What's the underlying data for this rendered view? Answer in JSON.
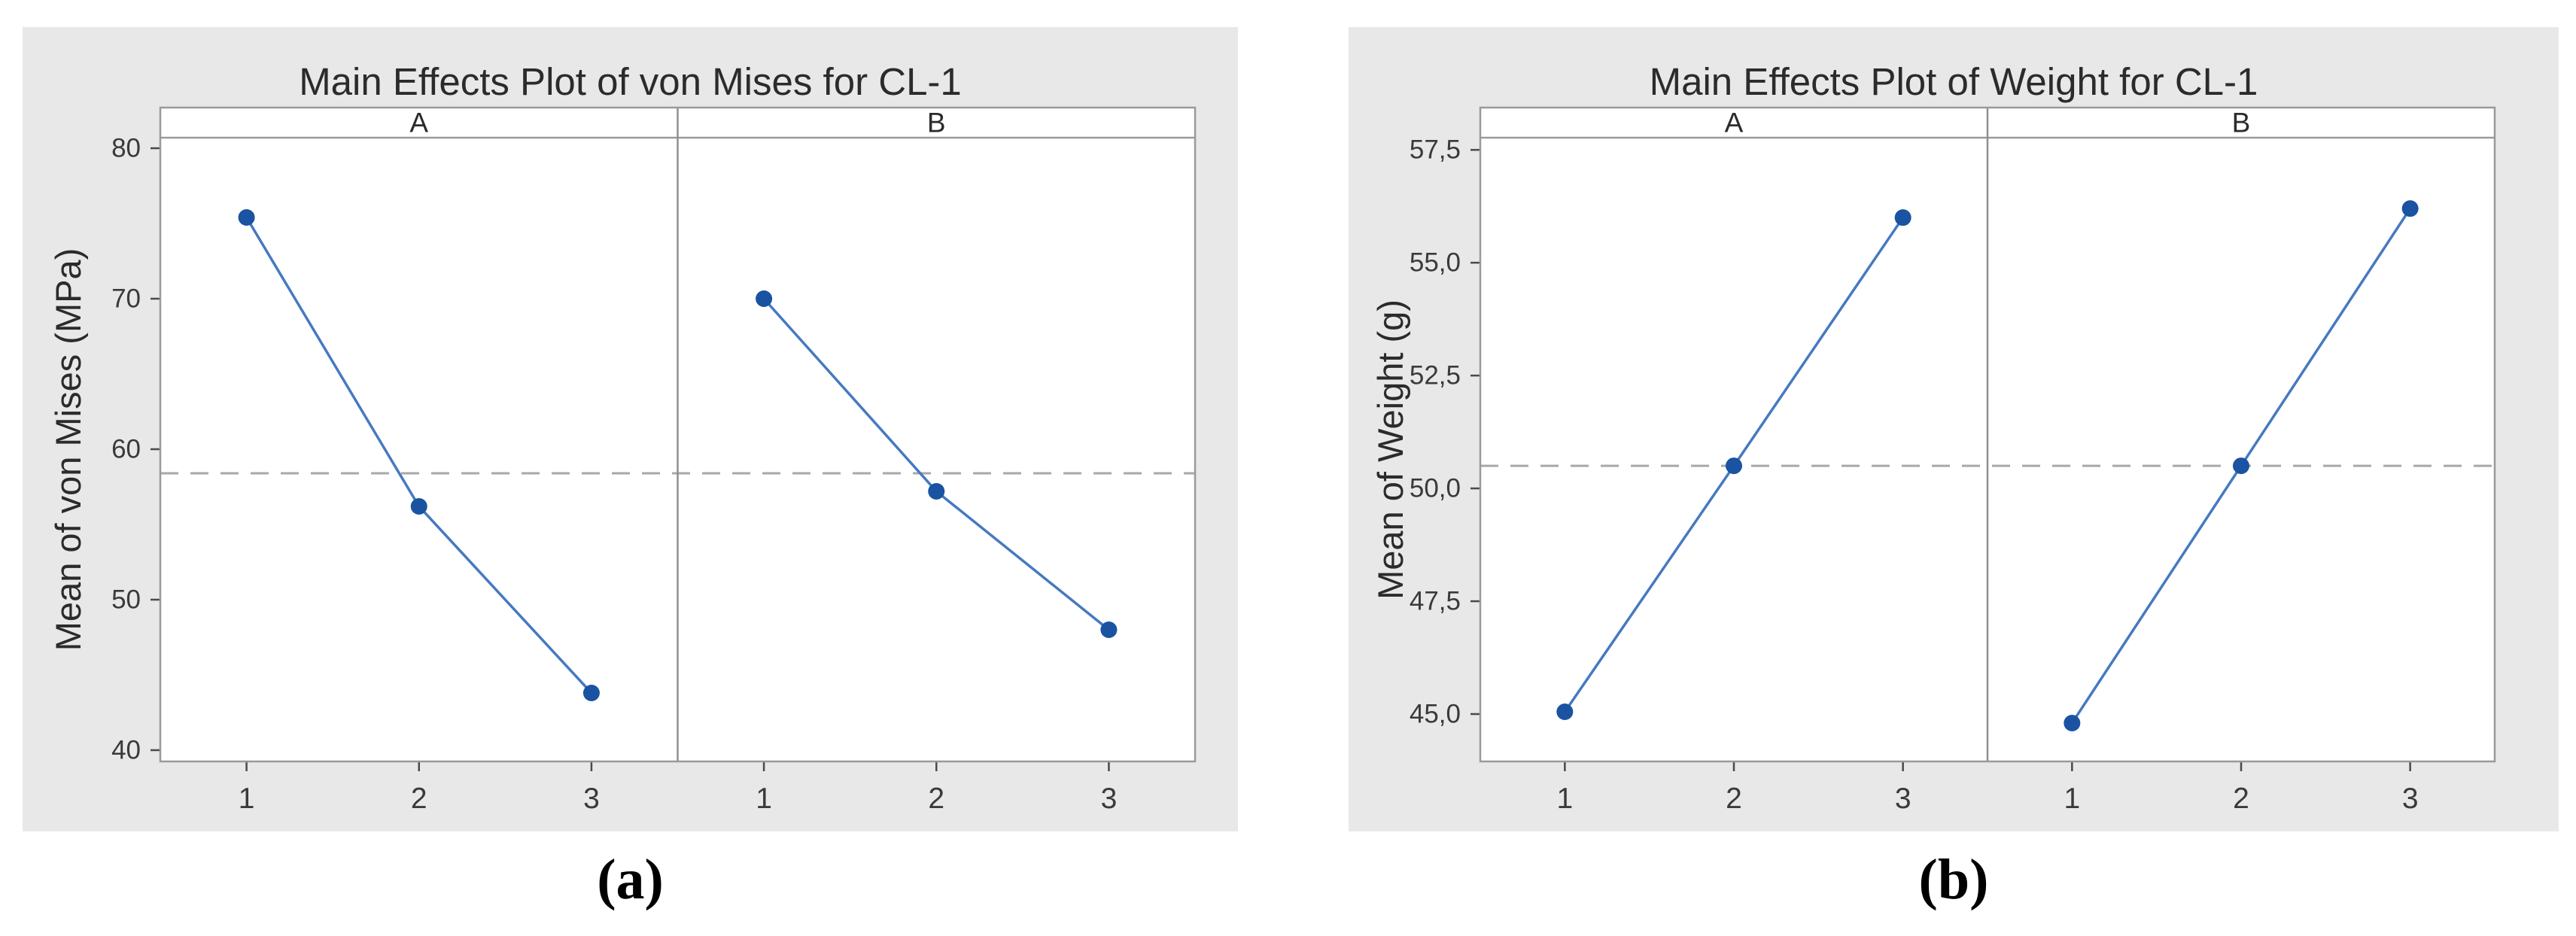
{
  "colors": {
    "panel_bg": "#e8e8e8",
    "plot_bg": "#ffffff",
    "frame": "#9a9a9a",
    "divider": "#8f8f8f",
    "tick": "#4a4a4a",
    "title_text": "#2b2b2b",
    "tick_text": "#3a3a3a",
    "line": "#4679c1",
    "marker": "#1a53a1",
    "mean_line": "#a8a8a8"
  },
  "chart_data": [
    {
      "type": "line",
      "title": "Main Effects Plot of von Mises for CL-1",
      "ylabel": "Mean of von Mises (MPa)",
      "xlabel": "",
      "caption": "(a)",
      "categories": [
        "1",
        "2",
        "3"
      ],
      "panels": [
        {
          "label": "A",
          "x": [
            1,
            2,
            3
          ],
          "values": [
            75.4,
            56.2,
            43.8
          ]
        },
        {
          "label": "B",
          "x": [
            1,
            2,
            3
          ],
          "values": [
            70.0,
            57.2,
            48.0
          ]
        }
      ],
      "mean_line": 58.4,
      "ylim": [
        39.25,
        80.7
      ],
      "yticks": [
        {
          "v": 80,
          "label": "80"
        },
        {
          "v": 70,
          "label": "70"
        },
        {
          "v": 60,
          "label": "60"
        },
        {
          "v": 50,
          "label": "50"
        },
        {
          "v": 40,
          "label": "40"
        }
      ],
      "grid": false,
      "legend": "none"
    },
    {
      "type": "line",
      "title": "Main Effects Plot of Weight for CL-1",
      "ylabel": "Mean of Weight (g)",
      "xlabel": "",
      "caption": "(b)",
      "categories": [
        "1",
        "2",
        "3"
      ],
      "panels": [
        {
          "label": "A",
          "x": [
            1,
            2,
            3
          ],
          "values": [
            45.05,
            50.5,
            56.0
          ]
        },
        {
          "label": "B",
          "x": [
            1,
            2,
            3
          ],
          "values": [
            44.8,
            50.5,
            56.2
          ]
        }
      ],
      "mean_line": 50.5,
      "ylim": [
        43.95,
        57.77
      ],
      "yticks": [
        {
          "v": 57.5,
          "label": "57,5"
        },
        {
          "v": 55.0,
          "label": "55,0"
        },
        {
          "v": 52.5,
          "label": "52,5"
        },
        {
          "v": 50.0,
          "label": "50,0"
        },
        {
          "v": 47.5,
          "label": "47,5"
        },
        {
          "v": 45.0,
          "label": "45,0"
        }
      ],
      "grid": false,
      "legend": "none"
    }
  ]
}
